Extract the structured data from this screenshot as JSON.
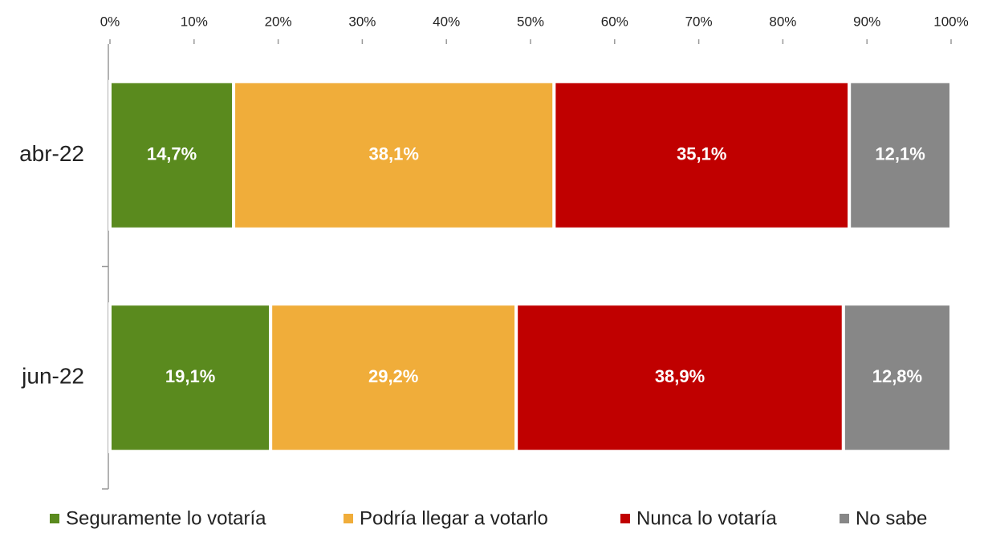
{
  "chart_data": {
    "type": "stacked-bar-horizontal",
    "categories": [
      "abr-22",
      "jun-22"
    ],
    "series": [
      {
        "name": "Seguramente lo votaría",
        "color": "#5a8a1e",
        "values": [
          14.7,
          19.1
        ],
        "value_labels": [
          "14,7%",
          "19,1%"
        ]
      },
      {
        "name": "Podría llegar a votarlo",
        "color": "#f0ad3a",
        "values": [
          38.1,
          29.2
        ],
        "value_labels": [
          "38,1%",
          "29,2%"
        ]
      },
      {
        "name": "Nunca lo votaría",
        "color": "#c00000",
        "values": [
          35.1,
          38.9
        ],
        "value_labels": [
          "35,1%",
          "38,9%"
        ]
      },
      {
        "name": "No sabe",
        "color": "#878787",
        "values": [
          12.1,
          12.8
        ],
        "value_labels": [
          "12,1%",
          "12,8%"
        ]
      }
    ],
    "xlim": [
      0,
      100
    ],
    "xticks": [
      {
        "value": 0,
        "label": "0%"
      },
      {
        "value": 10,
        "label": "10%"
      },
      {
        "value": 20,
        "label": "20%"
      },
      {
        "value": 30,
        "label": "30%"
      },
      {
        "value": 40,
        "label": "40%"
      },
      {
        "value": 50,
        "label": "50%"
      },
      {
        "value": 60,
        "label": "60%"
      },
      {
        "value": 70,
        "label": "70%"
      },
      {
        "value": 80,
        "label": "80%"
      },
      {
        "value": 90,
        "label": "90%"
      },
      {
        "value": 100,
        "label": "100%"
      }
    ],
    "legend": "bottom"
  }
}
